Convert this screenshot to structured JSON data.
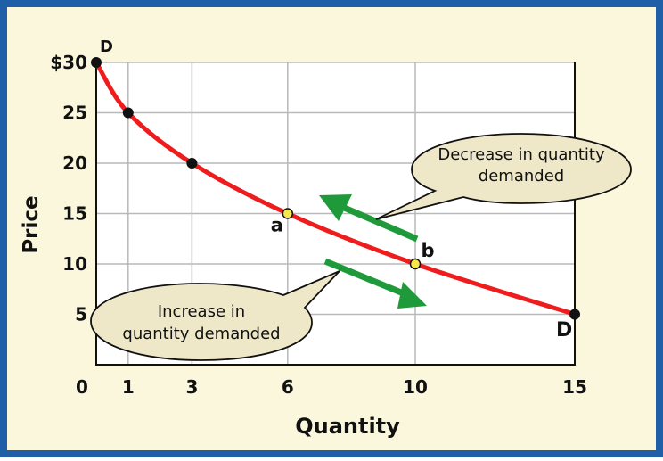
{
  "colors": {
    "frame": "#1f5fa8",
    "background": "#fbf7dc",
    "plot": "#ffffff",
    "grid": "#b9b9b9",
    "curve": "#ee1c1c",
    "dot": "#111111",
    "highlight_dot": "#f7e84a",
    "arrow": "#1f9a3a",
    "bubble": "#efe8c8"
  },
  "chart_data": {
    "type": "line",
    "xlabel": "Quantity",
    "ylabel": "Price",
    "xlim": [
      0,
      15
    ],
    "ylim": [
      0,
      30
    ],
    "x_ticks": [
      {
        "value": 0,
        "label": "0"
      },
      {
        "value": 1,
        "label": "1"
      },
      {
        "value": 3,
        "label": "3"
      },
      {
        "value": 6,
        "label": "6"
      },
      {
        "value": 10,
        "label": "10"
      },
      {
        "value": 15,
        "label": "15"
      }
    ],
    "y_ticks": [
      {
        "value": 5,
        "label": "5"
      },
      {
        "value": 10,
        "label": "10"
      },
      {
        "value": 15,
        "label": "15"
      },
      {
        "value": 20,
        "label": "20"
      },
      {
        "value": 25,
        "label": "25"
      },
      {
        "value": 30,
        "label": "$30"
      }
    ],
    "grid": true,
    "series": [
      {
        "name": "D",
        "x": [
          0,
          1,
          3,
          6,
          10,
          15
        ],
        "y": [
          30,
          25,
          20,
          15,
          10,
          5
        ]
      }
    ],
    "points": [
      {
        "x": 0,
        "y": 30,
        "style": "black"
      },
      {
        "x": 1,
        "y": 25,
        "style": "black"
      },
      {
        "x": 3,
        "y": 20,
        "style": "black"
      },
      {
        "x": 6,
        "y": 15,
        "style": "highlight",
        "label": "a"
      },
      {
        "x": 10,
        "y": 10,
        "style": "highlight",
        "label": "b"
      },
      {
        "x": 15,
        "y": 5,
        "style": "black"
      }
    ],
    "curve_labels": {
      "start": "D",
      "end": "D"
    },
    "annotations": {
      "decrease": [
        "Decrease in quantity",
        "demanded"
      ],
      "increase": [
        "Increase in",
        "quantity demanded"
      ]
    }
  }
}
